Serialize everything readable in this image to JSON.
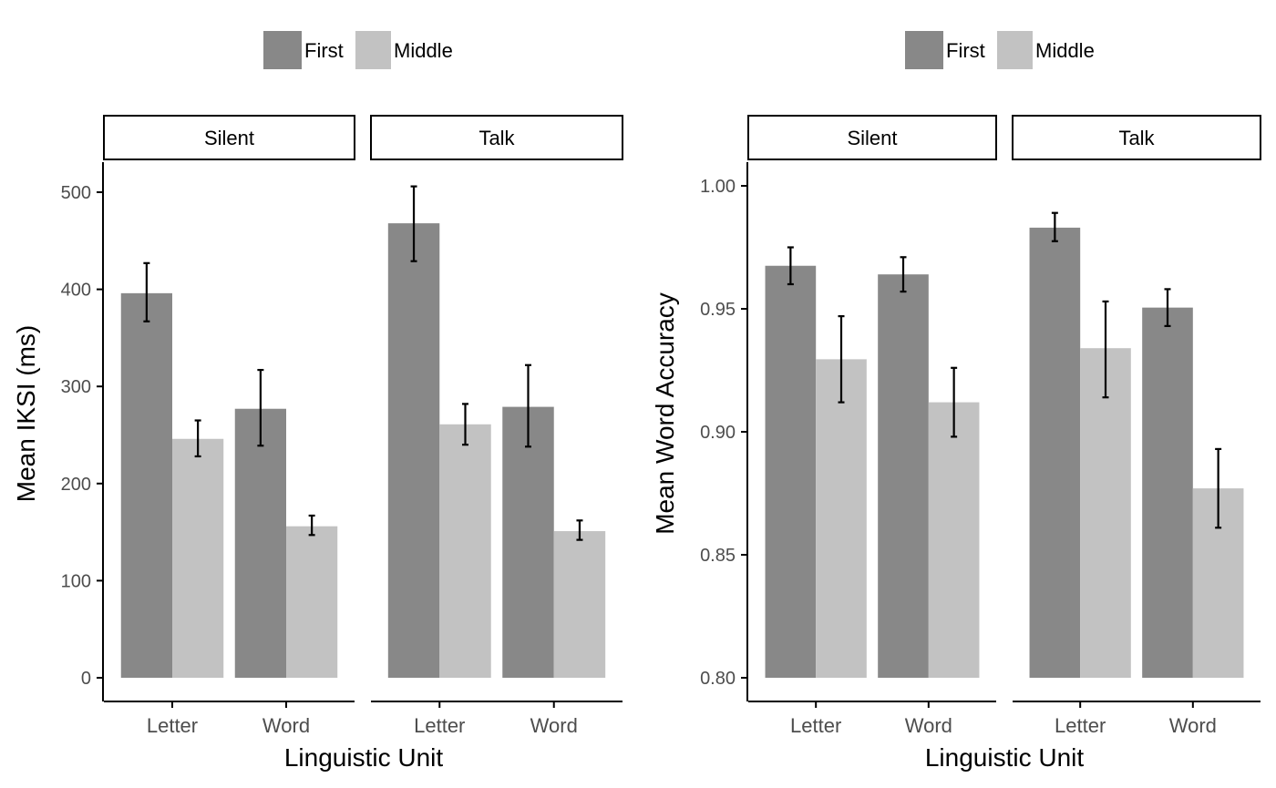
{
  "colors": {
    "first": "#888888",
    "middle": "#c2c2c2",
    "axis": "#000000",
    "tick_text": "#4d4d4d",
    "title_text": "#000000"
  },
  "chart_data": [
    {
      "type": "bar",
      "xlabel": "Linguistic Unit",
      "ylabel": "Mean IKSI (ms)",
      "ylim": [
        -25,
        530
      ],
      "yticks": [
        0,
        100,
        200,
        300,
        400,
        500
      ],
      "ytick_labels": [
        "0",
        "100",
        "200",
        "300",
        "400",
        "500"
      ],
      "legend": {
        "position": "top",
        "entries": [
          "First",
          "Middle"
        ]
      },
      "facets": [
        {
          "label": "Silent",
          "categories": [
            "Letter",
            "Word"
          ],
          "series": [
            {
              "name": "First",
              "values": [
                396,
                277
              ],
              "errors": [
                [
                  367,
                  427
                ],
                [
                  239,
                  317
                ]
              ]
            },
            {
              "name": "Middle",
              "values": [
                246,
                156
              ],
              "errors": [
                [
                  228,
                  265
                ],
                [
                  147,
                  167
                ]
              ]
            }
          ]
        },
        {
          "label": "Talk",
          "categories": [
            "Letter",
            "Word"
          ],
          "series": [
            {
              "name": "First",
              "values": [
                468,
                279
              ],
              "errors": [
                [
                  429,
                  506
                ],
                [
                  238,
                  322
                ]
              ]
            },
            {
              "name": "Middle",
              "values": [
                261,
                151
              ],
              "errors": [
                [
                  240,
                  282
                ],
                [
                  142,
                  162
                ]
              ]
            }
          ]
        }
      ]
    },
    {
      "type": "bar",
      "xlabel": "Linguistic Unit",
      "ylabel": "Mean Word Accuracy",
      "ylim": [
        0.79,
        1.01
      ],
      "yticks": [
        0.8,
        0.85,
        0.9,
        0.95,
        1.0
      ],
      "ytick_labels": [
        "0.80",
        "0.85",
        "0.90",
        "0.95",
        "1.00"
      ],
      "legend": {
        "position": "top",
        "entries": [
          "First",
          "Middle"
        ]
      },
      "facets": [
        {
          "label": "Silent",
          "categories": [
            "Letter",
            "Word"
          ],
          "series": [
            {
              "name": "First",
              "values": [
                0.9675,
                0.964
              ],
              "errors": [
                [
                  0.96,
                  0.975
                ],
                [
                  0.957,
                  0.971
                ]
              ]
            },
            {
              "name": "Middle",
              "values": [
                0.9295,
                0.912
              ],
              "errors": [
                [
                  0.912,
                  0.947
                ],
                [
                  0.898,
                  0.926
                ]
              ]
            }
          ]
        },
        {
          "label": "Talk",
          "categories": [
            "Letter",
            "Word"
          ],
          "series": [
            {
              "name": "First",
              "values": [
                0.983,
                0.9505
              ],
              "errors": [
                [
                  0.9775,
                  0.989
                ],
                [
                  0.943,
                  0.958
                ]
              ]
            },
            {
              "name": "Middle",
              "values": [
                0.934,
                0.877
              ],
              "errors": [
                [
                  0.914,
                  0.953
                ],
                [
                  0.861,
                  0.893
                ]
              ]
            }
          ]
        }
      ]
    }
  ]
}
